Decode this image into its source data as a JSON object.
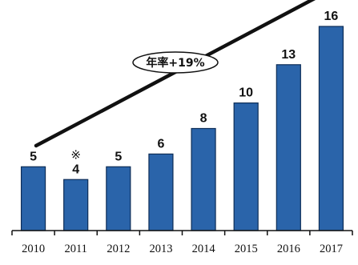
{
  "chart_data": {
    "type": "bar",
    "title": "",
    "xlabel": "",
    "ylabel": "",
    "categories": [
      "2010",
      "2011",
      "2012",
      "2013",
      "2014",
      "2015",
      "2016",
      "2017"
    ],
    "values": [
      5,
      4,
      5,
      6,
      8,
      10,
      13,
      16
    ],
    "data_labels": [
      "5",
      "4",
      "5",
      "6",
      "8",
      "10",
      "13",
      "16"
    ],
    "notes": [
      {
        "category": "2011",
        "mark": "※"
      }
    ],
    "trend": {
      "label": "年率+19%"
    },
    "ylim": [
      0,
      16
    ],
    "grid": false,
    "legend": "none",
    "bar_color": "#2a64aa",
    "bar_edge_color": "#0d2d57"
  }
}
